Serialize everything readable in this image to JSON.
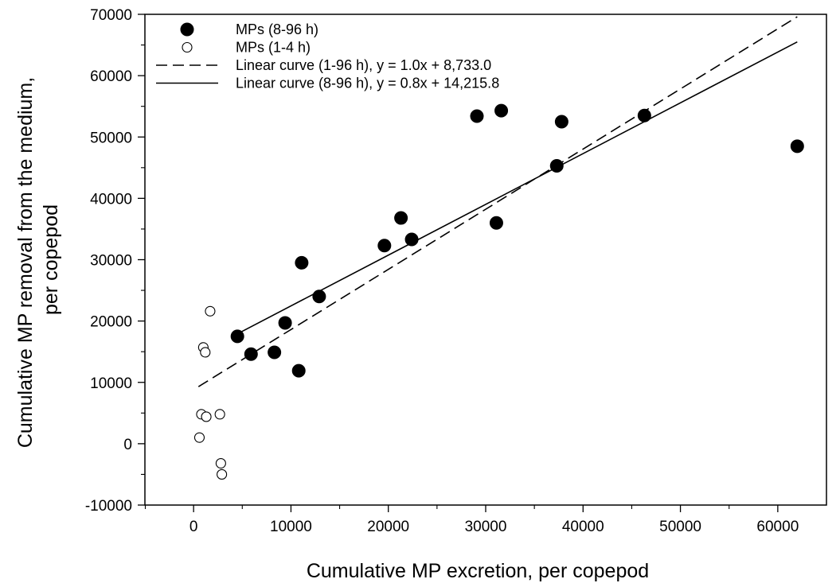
{
  "chart_data": {
    "type": "scatter",
    "xlabel": "Cumulative MP excretion, per copepod",
    "ylabel_lines": [
      "Cumulative MP removal from the medium,",
      "per copepod"
    ],
    "xlim": [
      -5000,
      65000
    ],
    "ylim": [
      -10000,
      70000
    ],
    "x_ticks": [
      0,
      10000,
      20000,
      30000,
      40000,
      50000,
      60000
    ],
    "y_ticks": [
      -10000,
      0,
      10000,
      20000,
      30000,
      40000,
      50000,
      60000,
      70000
    ],
    "grid": false,
    "legend_position": "top-left",
    "series": [
      {
        "name": "MPs (8-96 h)",
        "marker": "filled-circle",
        "color": "#000000",
        "points": [
          [
            4500,
            17500
          ],
          [
            5900,
            14600
          ],
          [
            8300,
            14900
          ],
          [
            9400,
            19700
          ],
          [
            10800,
            11900
          ],
          [
            11100,
            29500
          ],
          [
            12900,
            24000
          ],
          [
            19600,
            32300
          ],
          [
            21300,
            36800
          ],
          [
            22400,
            33300
          ],
          [
            29100,
            53400
          ],
          [
            31100,
            36000
          ],
          [
            31600,
            54300
          ],
          [
            37300,
            45300
          ],
          [
            37800,
            52500
          ],
          [
            46300,
            53500
          ],
          [
            62000,
            48500
          ]
        ]
      },
      {
        "name": "MPs (1-4 h)",
        "marker": "open-circle",
        "color": "#000000",
        "points": [
          [
            600,
            1000
          ],
          [
            800,
            4800
          ],
          [
            1000,
            15700
          ],
          [
            1200,
            14900
          ],
          [
            1300,
            4400
          ],
          [
            1700,
            21600
          ],
          [
            2700,
            4800
          ],
          [
            2800,
            -3200
          ],
          [
            2900,
            -5000
          ]
        ]
      }
    ],
    "fits": [
      {
        "name": "Linear curve (1-96 h), y = 1.0x + 8,733.0",
        "style": "dashed",
        "x_range": [
          500,
          62000
        ],
        "y_range": [
          9300,
          69600
        ]
      },
      {
        "name": "Linear curve (8-96 h), y = 0.8x + 14,215.8",
        "style": "solid",
        "x_range": [
          4000,
          62000
        ],
        "y_range": [
          17500,
          65500
        ]
      }
    ]
  }
}
